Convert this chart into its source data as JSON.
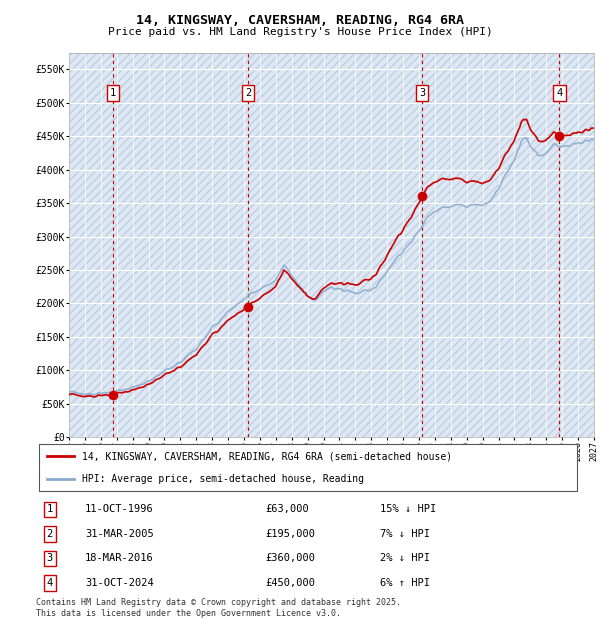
{
  "title_line1": "14, KINGSWAY, CAVERSHAM, READING, RG4 6RA",
  "title_line2": "Price paid vs. HM Land Registry's House Price Index (HPI)",
  "xlim_years": [
    1994,
    2027
  ],
  "ylim": [
    0,
    575000
  ],
  "yticks": [
    0,
    50000,
    100000,
    150000,
    200000,
    250000,
    300000,
    350000,
    400000,
    450000,
    500000,
    550000
  ],
  "ytick_labels": [
    "£0",
    "£50K",
    "£100K",
    "£150K",
    "£200K",
    "£250K",
    "£300K",
    "£350K",
    "£400K",
    "£450K",
    "£500K",
    "£550K"
  ],
  "sale_dates_dec": [
    1996.78,
    2005.25,
    2016.21,
    2024.83
  ],
  "sale_prices": [
    63000,
    195000,
    360000,
    450000
  ],
  "sale_labels": [
    "1",
    "2",
    "3",
    "4"
  ],
  "sale_color": "#cc0000",
  "hpi_color": "#88aacc",
  "background_color": "#dde8f4",
  "grid_color": "#ffffff",
  "vline_color": "#cc0000",
  "legend_entries": [
    "14, KINGSWAY, CAVERSHAM, READING, RG4 6RA (semi-detached house)",
    "HPI: Average price, semi-detached house, Reading"
  ],
  "table_rows": [
    {
      "num": "1",
      "date": "11-OCT-1996",
      "price": "£63,000",
      "hpi": "15% ↓ HPI"
    },
    {
      "num": "2",
      "date": "31-MAR-2005",
      "price": "£195,000",
      "hpi": "7% ↓ HPI"
    },
    {
      "num": "3",
      "date": "18-MAR-2016",
      "price": "£360,000",
      "hpi": "2% ↓ HPI"
    },
    {
      "num": "4",
      "date": "31-OCT-2024",
      "price": "£450,000",
      "hpi": "6% ↑ HPI"
    }
  ],
  "footer": "Contains HM Land Registry data © Crown copyright and database right 2025.\nThis data is licensed under the Open Government Licence v3.0."
}
